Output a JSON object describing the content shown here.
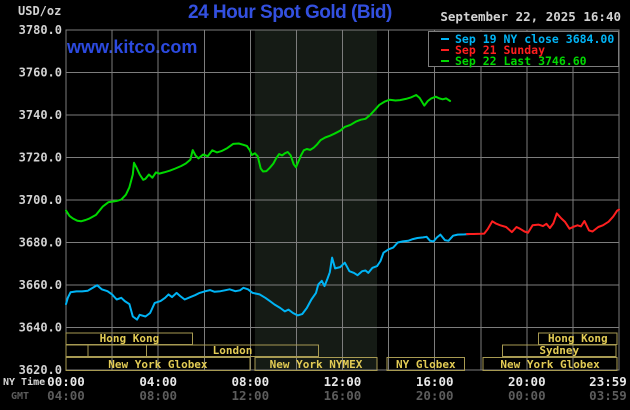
{
  "header": {
    "unit_label": "USD/oz",
    "title": "24 Hour Spot Gold (Bid)",
    "datetime": "September 22, 2025 16:40",
    "watermark": "www.kitco.com"
  },
  "footer": {
    "ny_time_label": "NY Time",
    "gmt_label": "GMT"
  },
  "colors": {
    "title_blue": "#3350e0",
    "watermark_blue": "#2c4ae0",
    "grid": "#7d7d7d",
    "band": "#151b15",
    "session_border": "#a79a52",
    "session_text": "#e3cc55",
    "axis_text": "#d2d2d2",
    "cyan": "#00b4f5",
    "red": "#ff1f1f",
    "green": "#00d800"
  },
  "chart_data": {
    "type": "line",
    "title": "24 Hour Spot Gold (Bid)",
    "xlabel": "NY Time",
    "ylabel": "USD/oz",
    "xlim": [
      0,
      24
    ],
    "ylim": [
      3620,
      3780
    ],
    "grid": true,
    "legend_position": "top-right",
    "y_ticks": [
      3780,
      3760,
      3740,
      3720,
      3700,
      3680,
      3660,
      3640,
      3620
    ],
    "x_ticks": [
      {
        "h": 0,
        "ny": "00:00",
        "gmt": "04:00"
      },
      {
        "h": 4,
        "ny": "04:00",
        "gmt": "08:00"
      },
      {
        "h": 8,
        "ny": "08:00",
        "gmt": "12:00"
      },
      {
        "h": 12,
        "ny": "12:00",
        "gmt": "16:00"
      },
      {
        "h": 16,
        "ny": "16:00",
        "gmt": "20:00"
      },
      {
        "h": 20,
        "ny": "20:00",
        "gmt": "00:00"
      },
      {
        "h": 24,
        "ny": "23:59",
        "gmt": "03:59"
      }
    ],
    "highlight_band": {
      "h0": 8.2,
      "h1": 13.5
    },
    "sessions": [
      {
        "row": 0,
        "label": "Hong Kong",
        "h0": 0,
        "h1": 5.5
      },
      {
        "row": 0,
        "label": "Hong Kong",
        "h0": 20.5,
        "h1": 23.92
      },
      {
        "row": 1,
        "label": "",
        "h0": 0,
        "h1": 0.95
      },
      {
        "row": 1,
        "label": "",
        "h0": 0.95,
        "h1": 3.5
      },
      {
        "row": 1,
        "label": "London",
        "h0": 3.5,
        "h1": 10.95
      },
      {
        "row": 1,
        "label": "Sydney",
        "h0": 18.95,
        "h1": 23.87
      },
      {
        "row": 2,
        "label": "New York Globex",
        "h0": 0,
        "h1": 7.98
      },
      {
        "row": 2,
        "label": "New York NYMEX",
        "h0": 8.2,
        "h1": 13.5
      },
      {
        "row": 2,
        "label": "NY Globex",
        "h0": 13.93,
        "h1": 17.3
      },
      {
        "row": 2,
        "label": "New York Globex",
        "h0": 18.1,
        "h1": 23.92
      }
    ],
    "series": [
      {
        "name": "Sep 19 NY close 3684.00",
        "color": "#00b4f5",
        "points": [
          [
            0,
            3651
          ],
          [
            0.08,
            3654
          ],
          [
            0.2,
            3656.6
          ],
          [
            0.45,
            3657
          ],
          [
            0.7,
            3657
          ],
          [
            0.95,
            3657.3
          ],
          [
            1.1,
            3658.3
          ],
          [
            1.35,
            3659.9
          ],
          [
            1.55,
            3658
          ],
          [
            1.8,
            3657.1
          ],
          [
            2,
            3655.6
          ],
          [
            2.2,
            3653.2
          ],
          [
            2.4,
            3654
          ],
          [
            2.55,
            3652.4
          ],
          [
            2.75,
            3651
          ],
          [
            2.9,
            3645.2
          ],
          [
            3.08,
            3643.7
          ],
          [
            3.2,
            3646
          ],
          [
            3.45,
            3645.2
          ],
          [
            3.65,
            3646.8
          ],
          [
            3.85,
            3651.6
          ],
          [
            4.1,
            3652.4
          ],
          [
            4.3,
            3654
          ],
          [
            4.45,
            3655.6
          ],
          [
            4.6,
            3654.3
          ],
          [
            4.8,
            3656.3
          ],
          [
            4.95,
            3654.8
          ],
          [
            5.15,
            3653.2
          ],
          [
            5.4,
            3654.3
          ],
          [
            5.6,
            3655.2
          ],
          [
            5.8,
            3656.3
          ],
          [
            6.05,
            3657.1
          ],
          [
            6.25,
            3657.6
          ],
          [
            6.45,
            3656.8
          ],
          [
            6.7,
            3657.1
          ],
          [
            6.9,
            3657.5
          ],
          [
            7.1,
            3658
          ],
          [
            7.35,
            3657.1
          ],
          [
            7.55,
            3657.5
          ],
          [
            7.7,
            3658.7
          ],
          [
            7.9,
            3658
          ],
          [
            8.1,
            3656.3
          ],
          [
            8.4,
            3655.6
          ],
          [
            8.65,
            3654
          ],
          [
            8.85,
            3652.4
          ],
          [
            9.05,
            3650.8
          ],
          [
            9.3,
            3649.2
          ],
          [
            9.5,
            3647.6
          ],
          [
            9.65,
            3648.4
          ],
          [
            9.85,
            3646.8
          ],
          [
            10.05,
            3645.7
          ],
          [
            10.25,
            3646.3
          ],
          [
            10.45,
            3649.2
          ],
          [
            10.65,
            3653.2
          ],
          [
            10.85,
            3656.3
          ],
          [
            10.95,
            3660.3
          ],
          [
            11.1,
            3662
          ],
          [
            11.22,
            3659.5
          ],
          [
            11.35,
            3663
          ],
          [
            11.45,
            3666
          ],
          [
            11.55,
            3672.9
          ],
          [
            11.68,
            3667.8
          ],
          [
            11.9,
            3668.4
          ],
          [
            12.1,
            3670.5
          ],
          [
            12.3,
            3666.5
          ],
          [
            12.5,
            3665.7
          ],
          [
            12.65,
            3664.6
          ],
          [
            12.85,
            3666.5
          ],
          [
            13,
            3666.8
          ],
          [
            13.12,
            3665.7
          ],
          [
            13.3,
            3668.1
          ],
          [
            13.5,
            3668.9
          ],
          [
            13.65,
            3671.3
          ],
          [
            13.78,
            3675.2
          ],
          [
            14,
            3676.8
          ],
          [
            14.2,
            3677.6
          ],
          [
            14.4,
            3680
          ],
          [
            14.62,
            3680.5
          ],
          [
            14.85,
            3680.8
          ],
          [
            15.05,
            3681.6
          ],
          [
            15.25,
            3682.1
          ],
          [
            15.5,
            3682.4
          ],
          [
            15.65,
            3682.7
          ],
          [
            15.8,
            3680.8
          ],
          [
            15.95,
            3680.5
          ],
          [
            16.1,
            3682.4
          ],
          [
            16.25,
            3683.7
          ],
          [
            16.45,
            3681.1
          ],
          [
            16.6,
            3680.8
          ],
          [
            16.8,
            3683.2
          ],
          [
            17,
            3683.7
          ],
          [
            17.3,
            3683.8
          ],
          [
            17.55,
            3684
          ]
        ]
      },
      {
        "name": "Sep 21 Sunday",
        "color": "#ff1f1f",
        "points": [
          [
            17.4,
            3684
          ],
          [
            17.7,
            3684
          ],
          [
            18,
            3684.1
          ],
          [
            18.15,
            3684.2
          ],
          [
            18.3,
            3686.3
          ],
          [
            18.5,
            3690
          ],
          [
            18.65,
            3689
          ],
          [
            18.85,
            3688.1
          ],
          [
            19.1,
            3687.3
          ],
          [
            19.35,
            3684.9
          ],
          [
            19.55,
            3687.3
          ],
          [
            19.7,
            3686.5
          ],
          [
            19.9,
            3685.2
          ],
          [
            20.05,
            3684.6
          ],
          [
            20.25,
            3688.1
          ],
          [
            20.5,
            3688.4
          ],
          [
            20.7,
            3687.7
          ],
          [
            20.85,
            3688.8
          ],
          [
            21,
            3686.8
          ],
          [
            21.15,
            3689
          ],
          [
            21.3,
            3693.7
          ],
          [
            21.5,
            3691.3
          ],
          [
            21.65,
            3689.8
          ],
          [
            21.85,
            3686.5
          ],
          [
            22,
            3687.3
          ],
          [
            22.2,
            3688.1
          ],
          [
            22.35,
            3687.6
          ],
          [
            22.5,
            3690.1
          ],
          [
            22.7,
            3685.7
          ],
          [
            22.85,
            3685.2
          ],
          [
            23.1,
            3687.3
          ],
          [
            23.3,
            3688.1
          ],
          [
            23.55,
            3689.8
          ],
          [
            23.75,
            3692.2
          ],
          [
            23.92,
            3695
          ],
          [
            24,
            3695.5
          ]
        ]
      },
      {
        "name": "Sep 22 Last 3746.60",
        "color": "#00d800",
        "points": [
          [
            0,
            3695
          ],
          [
            0.15,
            3692.5
          ],
          [
            0.3,
            3691.3
          ],
          [
            0.5,
            3690.2
          ],
          [
            0.65,
            3690
          ],
          [
            0.85,
            3690.6
          ],
          [
            1,
            3691.2
          ],
          [
            1.3,
            3693
          ],
          [
            1.6,
            3697
          ],
          [
            1.85,
            3699
          ],
          [
            2.05,
            3699.3
          ],
          [
            2.2,
            3699.6
          ],
          [
            2.4,
            3700.2
          ],
          [
            2.6,
            3702.5
          ],
          [
            2.75,
            3706
          ],
          [
            2.9,
            3712
          ],
          [
            2.95,
            3717.5
          ],
          [
            3.05,
            3715.5
          ],
          [
            3.2,
            3712
          ],
          [
            3.35,
            3709.5
          ],
          [
            3.45,
            3710
          ],
          [
            3.6,
            3712
          ],
          [
            3.75,
            3710.5
          ],
          [
            3.9,
            3713
          ],
          [
            4.05,
            3712.4
          ],
          [
            4.25,
            3713
          ],
          [
            4.5,
            3713.8
          ],
          [
            4.75,
            3714.8
          ],
          [
            5,
            3716
          ],
          [
            5.2,
            3717.2
          ],
          [
            5.4,
            3719
          ],
          [
            5.5,
            3723.5
          ],
          [
            5.62,
            3721
          ],
          [
            5.75,
            3719.6
          ],
          [
            5.95,
            3721.4
          ],
          [
            6.15,
            3720.6
          ],
          [
            6.35,
            3723.4
          ],
          [
            6.55,
            3722.4
          ],
          [
            6.75,
            3723
          ],
          [
            7,
            3724.4
          ],
          [
            7.25,
            3726.4
          ],
          [
            7.5,
            3726.6
          ],
          [
            7.7,
            3726
          ],
          [
            7.85,
            3725.4
          ],
          [
            7.97,
            3723.6
          ],
          [
            8.07,
            3721.2
          ],
          [
            8.2,
            3722
          ],
          [
            8.32,
            3720.6
          ],
          [
            8.45,
            3714.8
          ],
          [
            8.55,
            3713.4
          ],
          [
            8.7,
            3713.6
          ],
          [
            8.85,
            3715.2
          ],
          [
            9,
            3717.2
          ],
          [
            9.12,
            3719.6
          ],
          [
            9.25,
            3721.6
          ],
          [
            9.38,
            3721
          ],
          [
            9.5,
            3722
          ],
          [
            9.62,
            3722.6
          ],
          [
            9.75,
            3721
          ],
          [
            9.88,
            3716.8
          ],
          [
            9.98,
            3715.4
          ],
          [
            10.08,
            3718
          ],
          [
            10.2,
            3721
          ],
          [
            10.32,
            3723.4
          ],
          [
            10.45,
            3724
          ],
          [
            10.6,
            3723.6
          ],
          [
            10.75,
            3724.6
          ],
          [
            10.9,
            3726.2
          ],
          [
            11.05,
            3728.2
          ],
          [
            11.25,
            3729.4
          ],
          [
            11.45,
            3730.2
          ],
          [
            11.65,
            3731.2
          ],
          [
            11.9,
            3732.6
          ],
          [
            12.1,
            3734.4
          ],
          [
            12.35,
            3735.4
          ],
          [
            12.6,
            3737
          ],
          [
            12.8,
            3737.8
          ],
          [
            13,
            3738.2
          ],
          [
            13.2,
            3740
          ],
          [
            13.4,
            3742.4
          ],
          [
            13.6,
            3744.8
          ],
          [
            13.85,
            3746.4
          ],
          [
            14.05,
            3747.2
          ],
          [
            14.3,
            3746.8
          ],
          [
            14.5,
            3747
          ],
          [
            14.75,
            3747.6
          ],
          [
            14.95,
            3748.2
          ],
          [
            15.2,
            3749.4
          ],
          [
            15.35,
            3748
          ],
          [
            15.55,
            3744.4
          ],
          [
            15.7,
            3746.6
          ],
          [
            15.85,
            3747.8
          ],
          [
            16.05,
            3748.6
          ],
          [
            16.2,
            3747.8
          ],
          [
            16.35,
            3747.4
          ],
          [
            16.5,
            3747.8
          ],
          [
            16.67,
            3746.6
          ]
        ]
      }
    ]
  }
}
